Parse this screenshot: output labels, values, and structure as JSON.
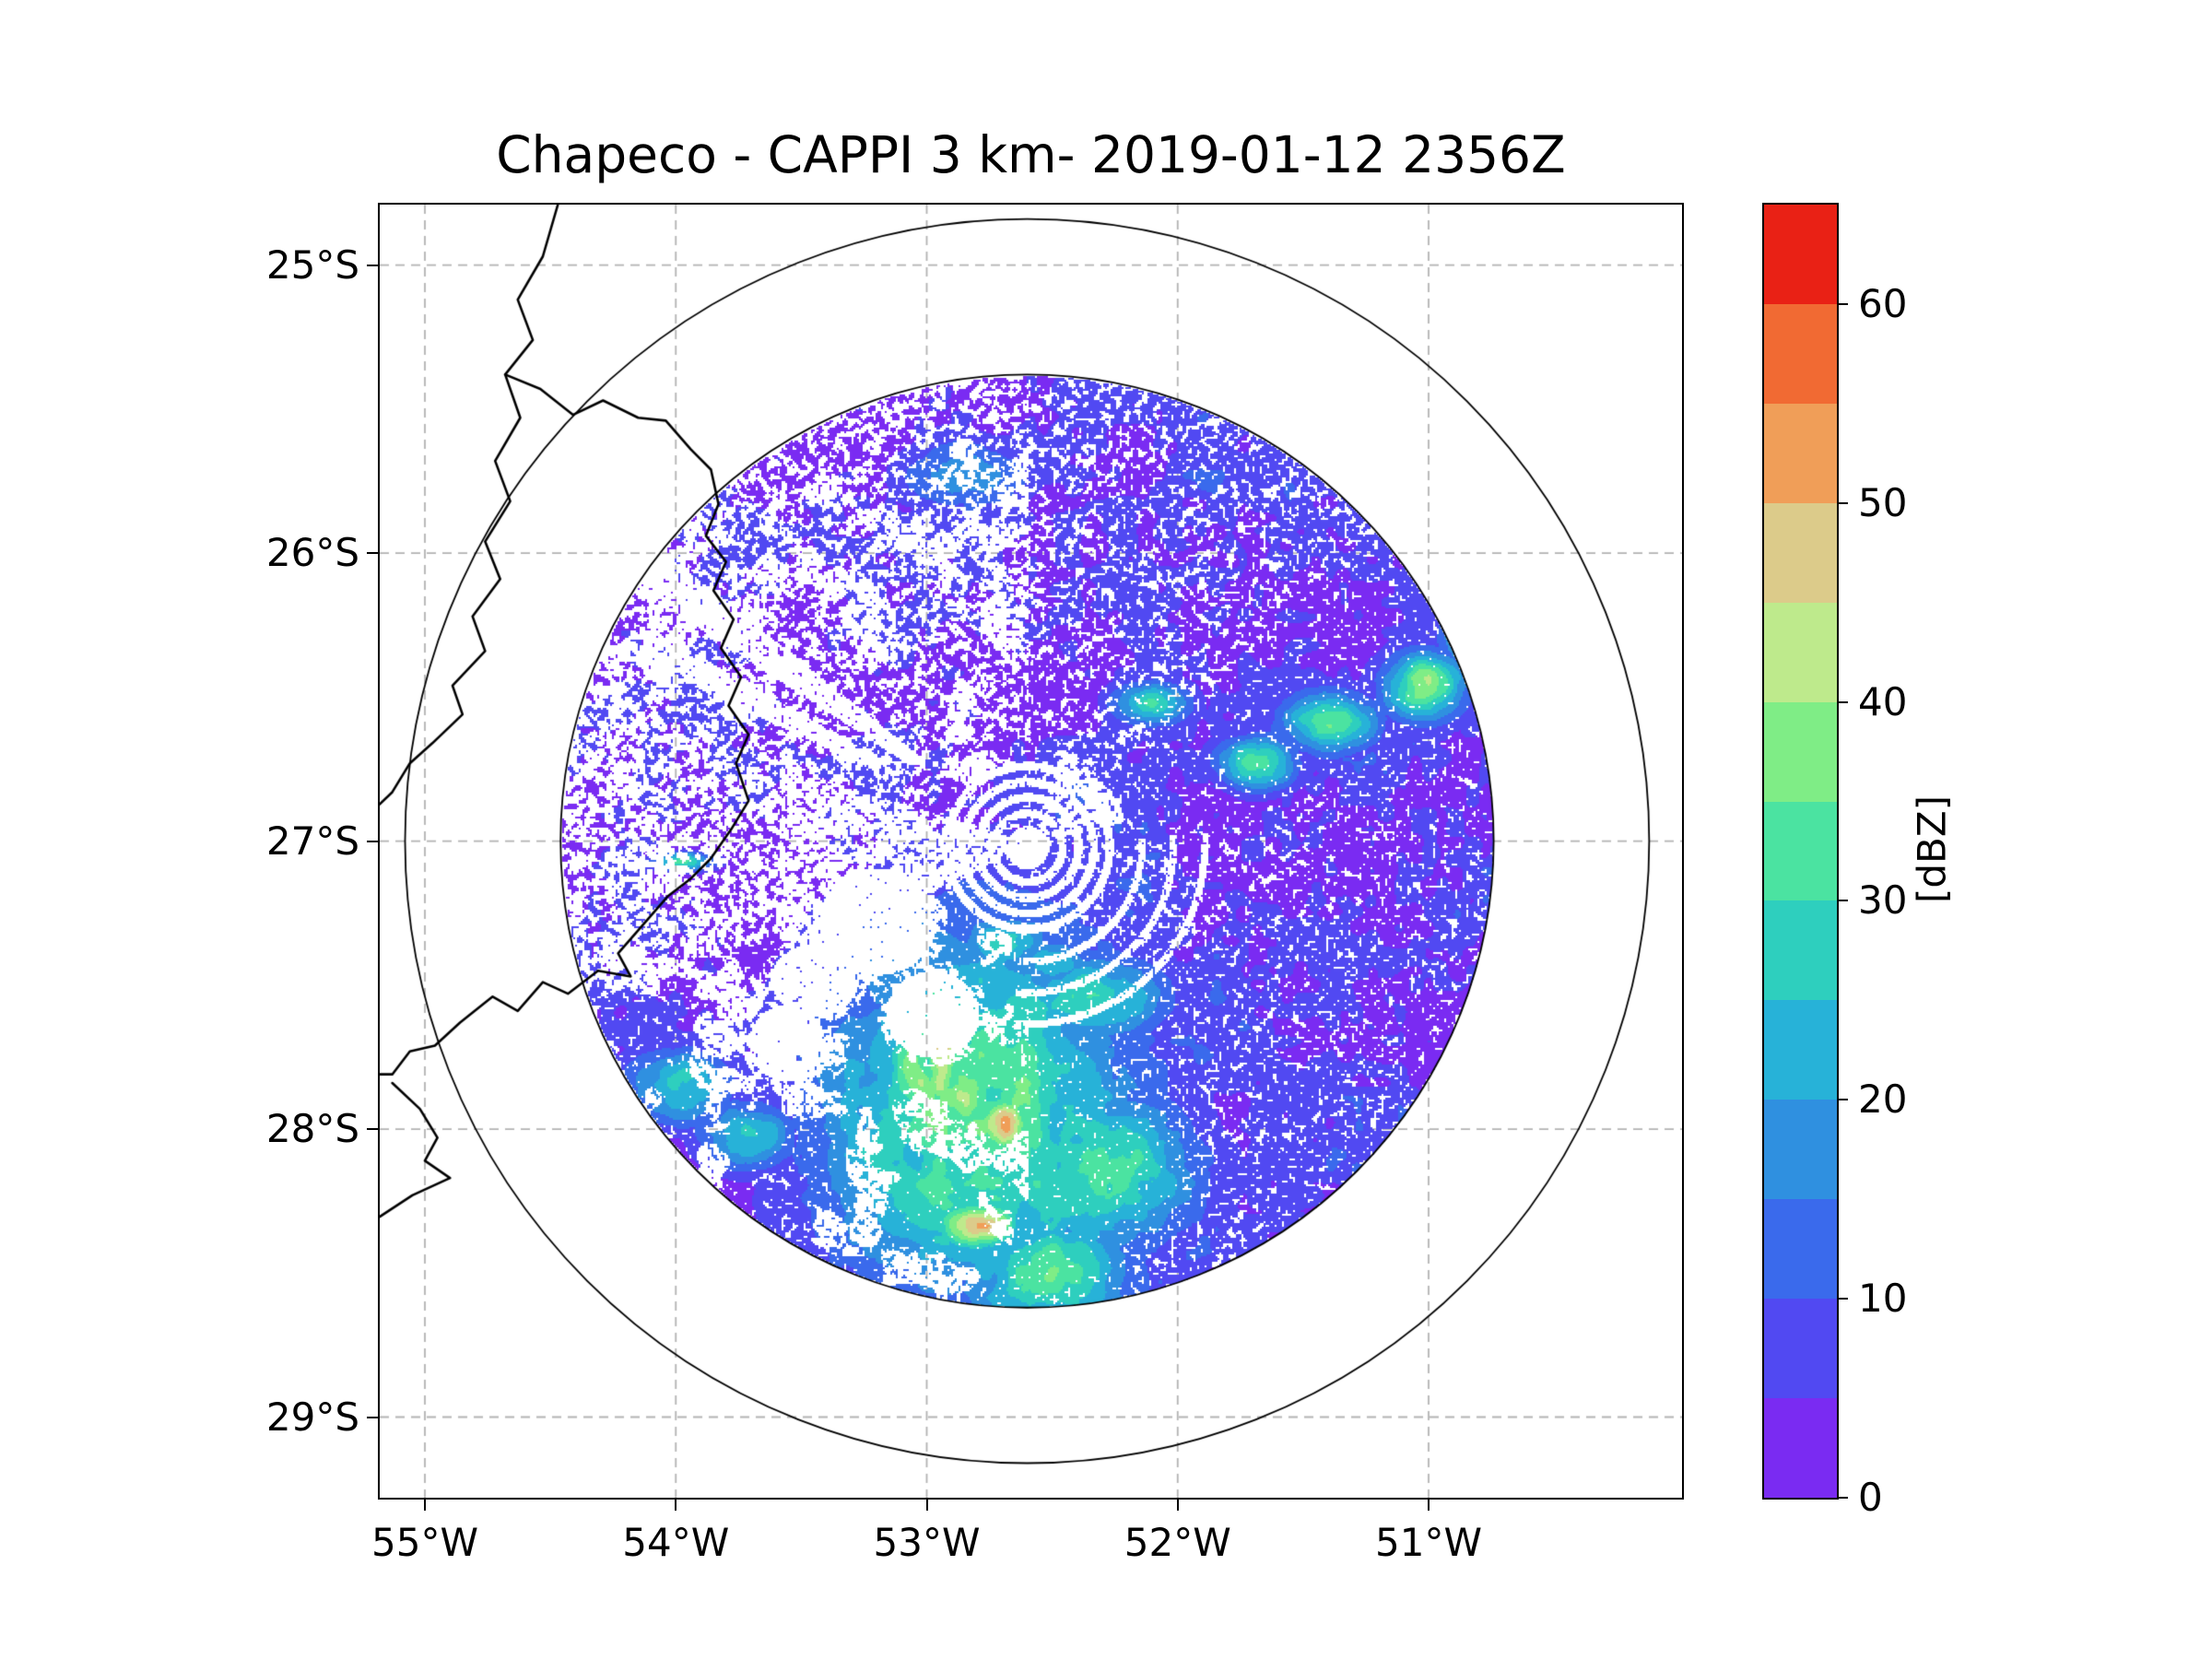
{
  "chart_data": {
    "type": "heatmap",
    "title": "Chapeco - CAPPI 3 km- 2019-01-12 2356Z",
    "xlabel": "",
    "ylabel": "",
    "value_units": "dBZ",
    "xlim_lon": [
      -55.18,
      -49.99
    ],
    "ylim_lat": [
      -29.28,
      -24.79
    ],
    "x_ticks": [
      {
        "label": "55°W",
        "lon": -55
      },
      {
        "label": "54°W",
        "lon": -54
      },
      {
        "label": "53°W",
        "lon": -53
      },
      {
        "label": "52°W",
        "lon": -52
      },
      {
        "label": "51°W",
        "lon": -51
      }
    ],
    "y_ticks": [
      {
        "label": "25°S",
        "lat": -25
      },
      {
        "label": "26°S",
        "lat": -26
      },
      {
        "label": "27°S",
        "lat": -27
      },
      {
        "label": "28°S",
        "lat": -28
      },
      {
        "label": "29°S",
        "lat": -29
      }
    ],
    "grid": {
      "color": "#b3b3b3",
      "dashed": true
    },
    "colorbar": {
      "label": "[dBZ]",
      "ticks": [
        0,
        10,
        20,
        30,
        40,
        50,
        60
      ],
      "vmin": 0,
      "vmax": 65,
      "bin_size": 5,
      "colors": [
        "#7A2BF2",
        "#5149F2",
        "#3A6AEC",
        "#2F90E0",
        "#27B2D8",
        "#2ECFBE",
        "#4BE3A1",
        "#7FED86",
        "#BEEA8C",
        "#DCCB8A",
        "#F09E58",
        "#F16A33",
        "#E92115"
      ]
    },
    "radar_center": {
      "lon": -52.6,
      "lat": -27.0
    },
    "artifact_center": {
      "lon": -52.6,
      "lat": -27.02
    },
    "range_rings_deg": [
      1.62,
      2.16
    ],
    "ring_color": "#000000",
    "features": [
      {
        "lon": -52.95,
        "lat": -27.72,
        "sx": 0.06,
        "sy": 0.18,
        "peak": 48
      },
      {
        "lon": -52.7,
        "lat": -27.98,
        "sx": 0.09,
        "sy": 0.09,
        "peak": 45
      },
      {
        "lon": -52.8,
        "lat": -28.33,
        "sx": 0.13,
        "sy": 0.07,
        "peak": 46
      },
      {
        "lon": -53.05,
        "lat": -27.8,
        "sx": 0.1,
        "sy": 0.12,
        "peak": 40
      },
      {
        "lon": -52.8,
        "lat": -27.95,
        "sx": 0.48,
        "sy": 0.5,
        "peak": 33
      },
      {
        "lon": -52.3,
        "lat": -28.15,
        "sx": 0.28,
        "sy": 0.22,
        "peak": 30
      },
      {
        "lon": -52.55,
        "lat": -28.5,
        "sx": 0.28,
        "sy": 0.15,
        "peak": 31
      },
      {
        "lon": -52.35,
        "lat": -27.55,
        "sx": 0.22,
        "sy": 0.12,
        "peak": 28
      },
      {
        "lon": -52.7,
        "lat": -27.35,
        "sx": 0.15,
        "sy": 0.08,
        "peak": 26
      },
      {
        "lon": -52.5,
        "lat": -27.42,
        "sx": 0.12,
        "sy": 0.07,
        "peak": 24
      },
      {
        "lon": -51.68,
        "lat": -26.72,
        "sx": 0.12,
        "sy": 0.07,
        "peak": 30
      },
      {
        "lon": -51.4,
        "lat": -26.58,
        "sx": 0.15,
        "sy": 0.08,
        "peak": 33
      },
      {
        "lon": -51.02,
        "lat": -26.46,
        "sx": 0.13,
        "sy": 0.09,
        "peak": 36
      },
      {
        "lon": -50.82,
        "lat": -26.28,
        "sx": 0.1,
        "sy": 0.08,
        "peak": 30
      },
      {
        "lon": -52.1,
        "lat": -26.52,
        "sx": 0.12,
        "sy": 0.06,
        "peak": 26
      },
      {
        "lon": -53.97,
        "lat": -27.07,
        "sx": 0.09,
        "sy": 0.025,
        "peak": 29
      },
      {
        "lon": -54.0,
        "lat": -27.85,
        "sx": 0.16,
        "sy": 0.1,
        "peak": 26
      },
      {
        "lon": -53.72,
        "lat": -28.02,
        "sx": 0.14,
        "sy": 0.09,
        "peak": 27
      },
      {
        "lon": -52.85,
        "lat": -25.72,
        "sx": 0.2,
        "sy": 0.1,
        "peak": 17
      }
    ],
    "no_data_regions": [
      {
        "lon": -53.2,
        "lat": -27.28,
        "rx": 0.28,
        "ry": 0.22
      },
      {
        "lon": -52.98,
        "lat": -27.6,
        "rx": 0.22,
        "ry": 0.18
      },
      {
        "lon": -53.45,
        "lat": -27.48,
        "rx": 0.21,
        "ry": 0.15
      },
      {
        "lon": -53.56,
        "lat": -27.7,
        "rx": 0.18,
        "ry": 0.16
      }
    ],
    "map_borders": [
      [
        [
          -54.47,
          -24.79
        ],
        [
          -54.53,
          -24.97
        ],
        [
          -54.63,
          -25.12
        ],
        [
          -54.57,
          -25.26
        ],
        [
          -54.68,
          -25.38
        ],
        [
          -54.62,
          -25.53
        ],
        [
          -54.72,
          -25.68
        ],
        [
          -54.66,
          -25.82
        ],
        [
          -54.76,
          -25.96
        ],
        [
          -54.7,
          -26.09
        ],
        [
          -54.81,
          -26.22
        ],
        [
          -54.76,
          -26.34
        ],
        [
          -54.89,
          -26.46
        ],
        [
          -54.85,
          -26.56
        ],
        [
          -54.97,
          -26.66
        ],
        [
          -55.06,
          -26.73
        ],
        [
          -55.13,
          -26.83
        ],
        [
          -55.19,
          -26.88
        ]
      ],
      [
        [
          -54.68,
          -25.38
        ],
        [
          -54.54,
          -25.43
        ],
        [
          -54.41,
          -25.52
        ],
        [
          -54.29,
          -25.47
        ],
        [
          -54.15,
          -25.53
        ],
        [
          -54.04,
          -25.54
        ],
        [
          -53.94,
          -25.64
        ],
        [
          -53.86,
          -25.71
        ],
        [
          -53.83,
          -25.83
        ],
        [
          -53.88,
          -25.94
        ],
        [
          -53.8,
          -26.03
        ],
        [
          -53.85,
          -26.13
        ],
        [
          -53.77,
          -26.23
        ],
        [
          -53.82,
          -26.33
        ],
        [
          -53.74,
          -26.43
        ],
        [
          -53.79,
          -26.53
        ],
        [
          -53.71,
          -26.63
        ],
        [
          -53.76,
          -26.73
        ],
        [
          -53.71,
          -26.86
        ],
        [
          -53.78,
          -26.96
        ],
        [
          -53.86,
          -27.06
        ],
        [
          -53.94,
          -27.13
        ],
        [
          -54.03,
          -27.19
        ],
        [
          -54.13,
          -27.29
        ],
        [
          -54.23,
          -27.39
        ],
        [
          -54.18,
          -27.47
        ],
        [
          -54.31,
          -27.45
        ],
        [
          -54.43,
          -27.53
        ],
        [
          -54.53,
          -27.49
        ],
        [
          -54.63,
          -27.59
        ],
        [
          -54.73,
          -27.54
        ],
        [
          -54.86,
          -27.63
        ],
        [
          -54.96,
          -27.71
        ],
        [
          -55.06,
          -27.73
        ],
        [
          -55.13,
          -27.81
        ],
        [
          -55.19,
          -27.81
        ]
      ],
      [
        [
          -55.13,
          -27.84
        ],
        [
          -55.02,
          -27.93
        ],
        [
          -54.95,
          -28.03
        ],
        [
          -55.0,
          -28.11
        ],
        [
          -54.9,
          -28.17
        ],
        [
          -55.05,
          -28.23
        ],
        [
          -55.19,
          -28.31
        ]
      ]
    ]
  }
}
